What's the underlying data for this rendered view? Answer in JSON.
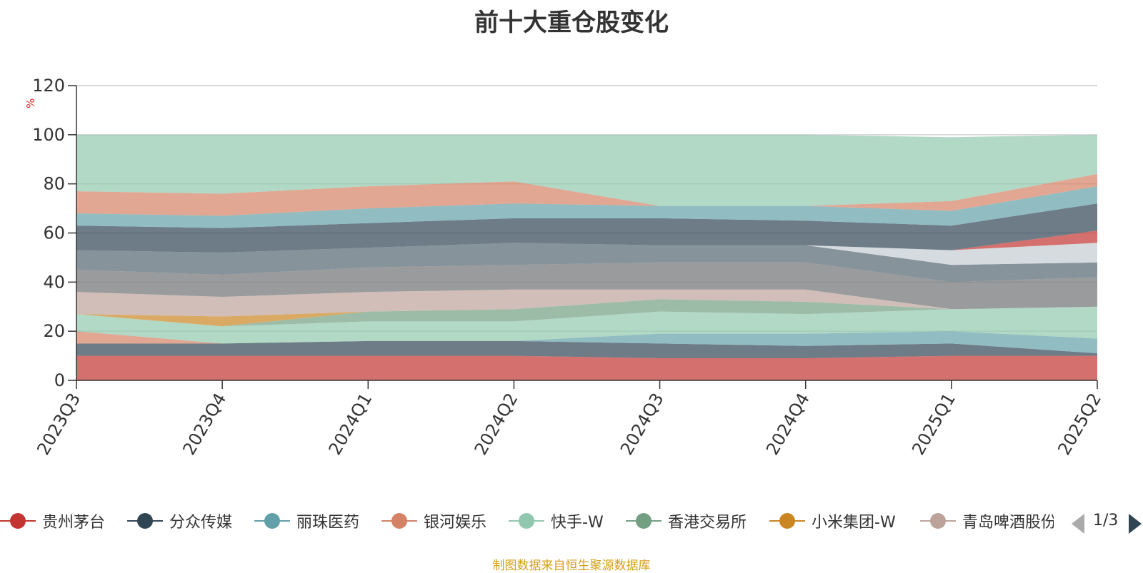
{
  "title": "前十大重仓股变化",
  "source_note": "制图数据来自恒生聚源数据库",
  "legend": {
    "page_indicator": "1/3",
    "items": [
      {
        "label": "贵州茅台",
        "color": "#c23531"
      },
      {
        "label": "分众传媒",
        "color": "#2f4554"
      },
      {
        "label": "丽珠医药",
        "color": "#61a0a8"
      },
      {
        "label": "银河娱乐",
        "color": "#d48265"
      },
      {
        "label": "快手-W",
        "color": "#91c7ae"
      },
      {
        "label": "香港交易所",
        "color": "#749f83"
      },
      {
        "label": "小米集团-W",
        "color": "#ca8622"
      },
      {
        "label": "青岛啤酒股份",
        "color": "#bda29a"
      }
    ]
  },
  "chart_data": {
    "type": "area",
    "title": "前十大重仓股变化",
    "ylabel": "%",
    "ylim": [
      0,
      120
    ],
    "yticks": [
      0,
      20,
      40,
      60,
      80,
      100,
      120
    ],
    "x": [
      "2023Q3",
      "2023Q4",
      "2024Q1",
      "2024Q2",
      "2024Q3",
      "2024Q4",
      "2025Q1",
      "2025Q2"
    ],
    "grid": true,
    "legend_position": "bottom",
    "series": [
      {
        "name": "贵州茅台",
        "color": "#c23531",
        "values": [
          10,
          10,
          10,
          10,
          9,
          9,
          10,
          10
        ]
      },
      {
        "name": "分众传媒",
        "color": "#2f4554",
        "values": [
          5,
          5,
          6,
          6,
          6,
          5,
          5,
          1
        ]
      },
      {
        "name": "丽珠医药",
        "color": "#61a0a8",
        "values": [
          0,
          0,
          0,
          0,
          4,
          5,
          5,
          6
        ]
      },
      {
        "name": "银河娱乐",
        "color": "#d48265",
        "values": [
          5,
          0,
          0,
          0,
          0,
          0,
          0,
          0
        ]
      },
      {
        "name": "快手-W",
        "color": "#91c7ae",
        "values": [
          7,
          7,
          8,
          8,
          9,
          8,
          9,
          13
        ]
      },
      {
        "name": "香港交易所",
        "color": "#749f83",
        "values": [
          0,
          0,
          4,
          5,
          5,
          5,
          0,
          0
        ]
      },
      {
        "name": "小米集团-W",
        "color": "#ca8622",
        "values": [
          0,
          4,
          0,
          0,
          0,
          0,
          0,
          0
        ]
      },
      {
        "name": "青岛啤酒股份",
        "color": "#bda29a",
        "values": [
          9,
          8,
          8,
          8,
          4,
          5,
          0,
          0
        ]
      },
      {
        "name": "",
        "color": "#6e7074",
        "values": [
          9,
          9,
          10,
          10,
          11,
          11,
          11,
          12
        ]
      },
      {
        "name": "",
        "color": "#546570",
        "values": [
          8,
          9,
          8,
          9,
          7,
          7,
          7,
          6
        ]
      },
      {
        "name": "",
        "color": "#c4ccd3",
        "values": [
          0,
          0,
          0,
          0,
          0,
          0,
          6,
          8
        ]
      },
      {
        "name": "",
        "color": "#c23531",
        "values": [
          0,
          0,
          0,
          0,
          0,
          0,
          0,
          5
        ]
      },
      {
        "name": "",
        "color": "#2f4554",
        "values": [
          10,
          10,
          10,
          10,
          11,
          10,
          10,
          11
        ]
      },
      {
        "name": "",
        "color": "#61a0a8",
        "values": [
          5,
          5,
          6,
          6,
          5,
          6,
          6,
          7
        ]
      },
      {
        "name": "",
        "color": "#d48265",
        "values": [
          9,
          9,
          9,
          9,
          0,
          0,
          4,
          5
        ]
      },
      {
        "name": "",
        "color": "#91c7ae",
        "values": [
          23,
          24,
          21,
          19,
          29,
          29,
          26,
          16
        ]
      }
    ]
  }
}
